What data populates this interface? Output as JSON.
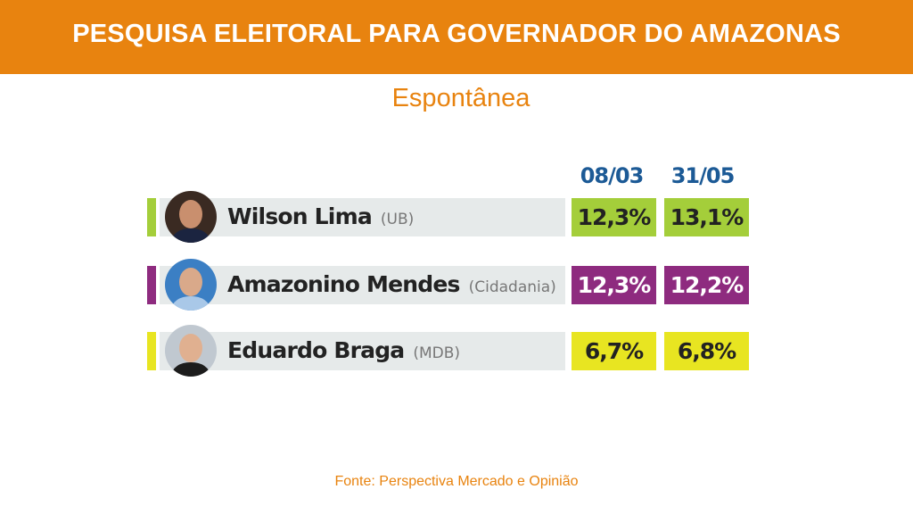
{
  "header": {
    "title": "PESQUISA ELEITORAL PARA GOVERNADOR DO AMAZONAS"
  },
  "subtitle": "Espontânea",
  "footer": "Fonte: Perspectiva Mercado e Opinião",
  "chart_data": {
    "type": "table",
    "title": "PESQUISA ELEITORAL PARA GOVERNADOR DO AMAZONAS",
    "subtitle": "Espontânea",
    "columns": [
      "08/03",
      "31/05"
    ],
    "rows": [
      {
        "name": "Wilson Lima",
        "party": "(UB)",
        "values": [
          "12,3%",
          "13,1%"
        ],
        "color": "#A4CE3A",
        "text_color": "#222222"
      },
      {
        "name": "Amazonino Mendes",
        "party": "(Cidadania)",
        "values": [
          "12,3%",
          "12,2%"
        ],
        "color": "#8E2B7F",
        "text_color": "#FFFFFF"
      },
      {
        "name": "Eduardo Braga",
        "party": "(MDB)",
        "values": [
          "6,7%",
          "6,8%"
        ],
        "color": "#E8E521",
        "text_color": "#222222"
      }
    ]
  }
}
